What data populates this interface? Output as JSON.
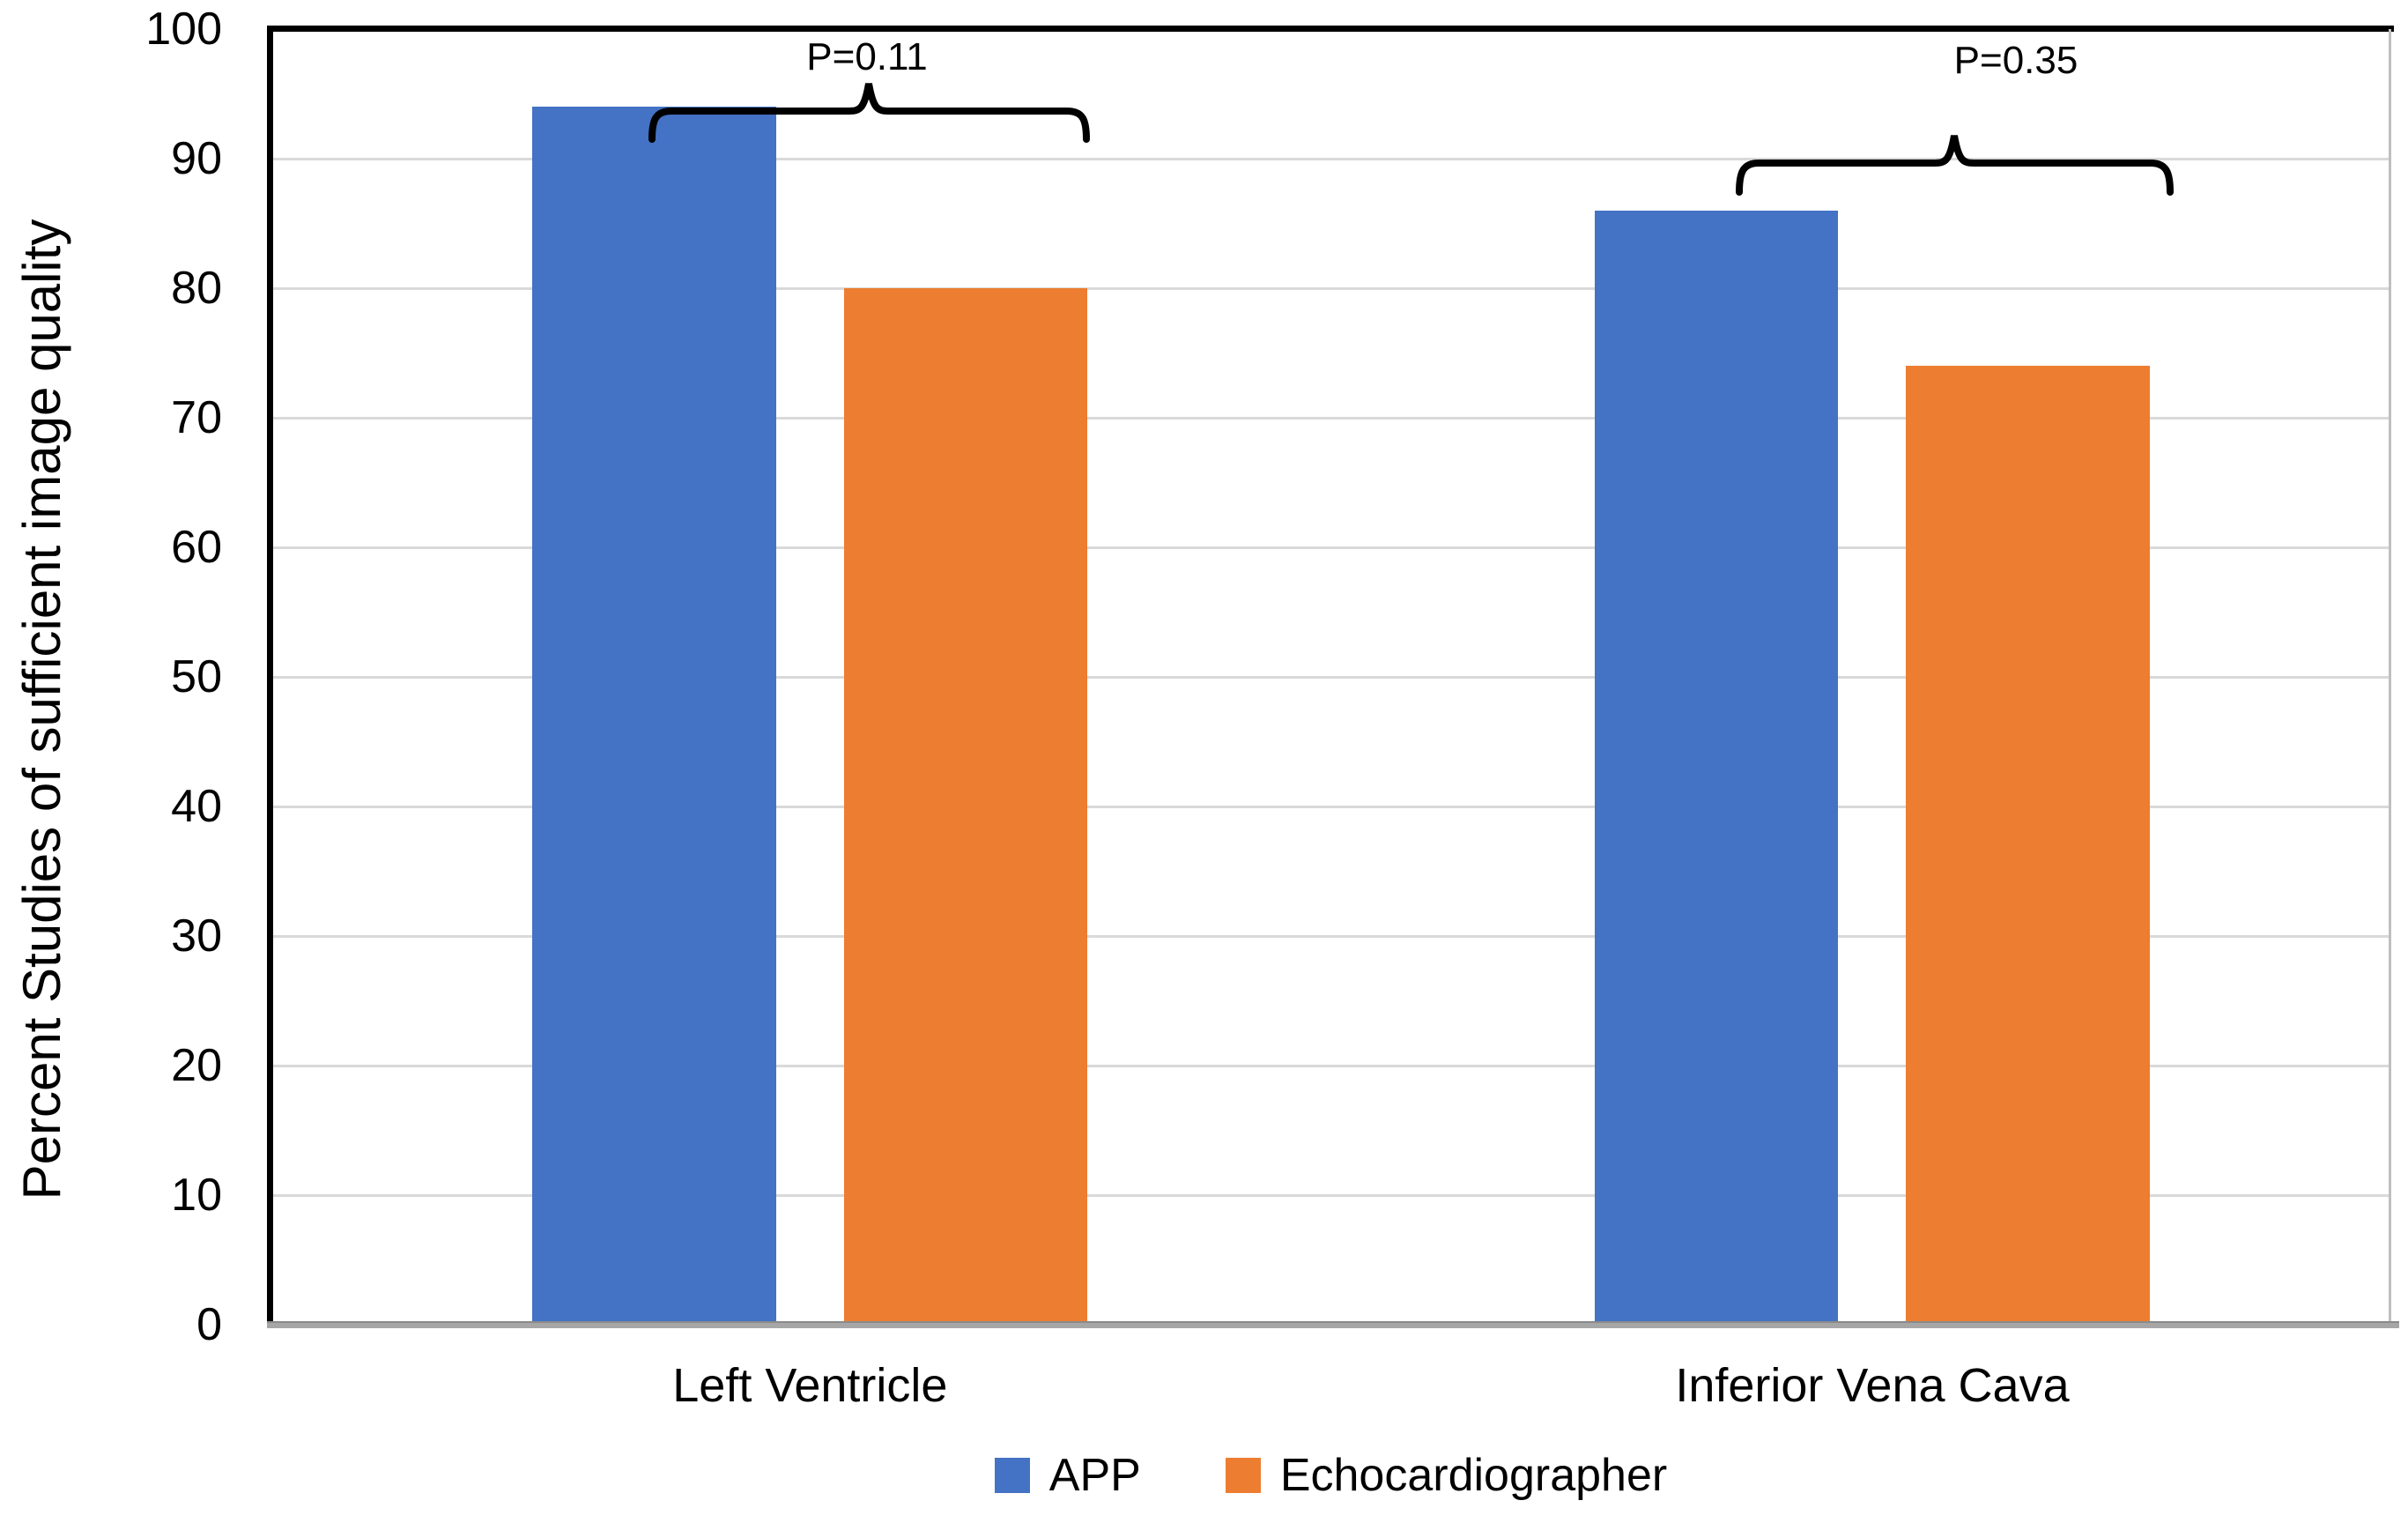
{
  "chart_data": {
    "type": "bar",
    "title": "",
    "xlabel": "",
    "ylabel": "Percent Studies of sufficient image quality",
    "ylim": [
      0,
      100
    ],
    "yticks": [
      0,
      10,
      20,
      30,
      40,
      50,
      60,
      70,
      80,
      90,
      100
    ],
    "grid": true,
    "legend_position": "bottom",
    "categories": [
      "Left Ventricle",
      "Inferior Vena Cava"
    ],
    "series": [
      {
        "name": "APP",
        "color": "#4472C4",
        "values": [
          94,
          86
        ]
      },
      {
        "name": "Echocardiographer",
        "color": "#ED7D31",
        "values": [
          80,
          74
        ]
      }
    ],
    "annotations": [
      {
        "category": "Left Ventricle",
        "label": "P=0.11"
      },
      {
        "category": "Inferior Vena Cava",
        "label": "P=0.35"
      }
    ]
  },
  "colors": {
    "gridline": "#d9d9d9",
    "axis_top_left": "#000000",
    "axis_bottom": "#a6a6a6",
    "axis_right": "#bfbfbf",
    "text": "#000000"
  }
}
